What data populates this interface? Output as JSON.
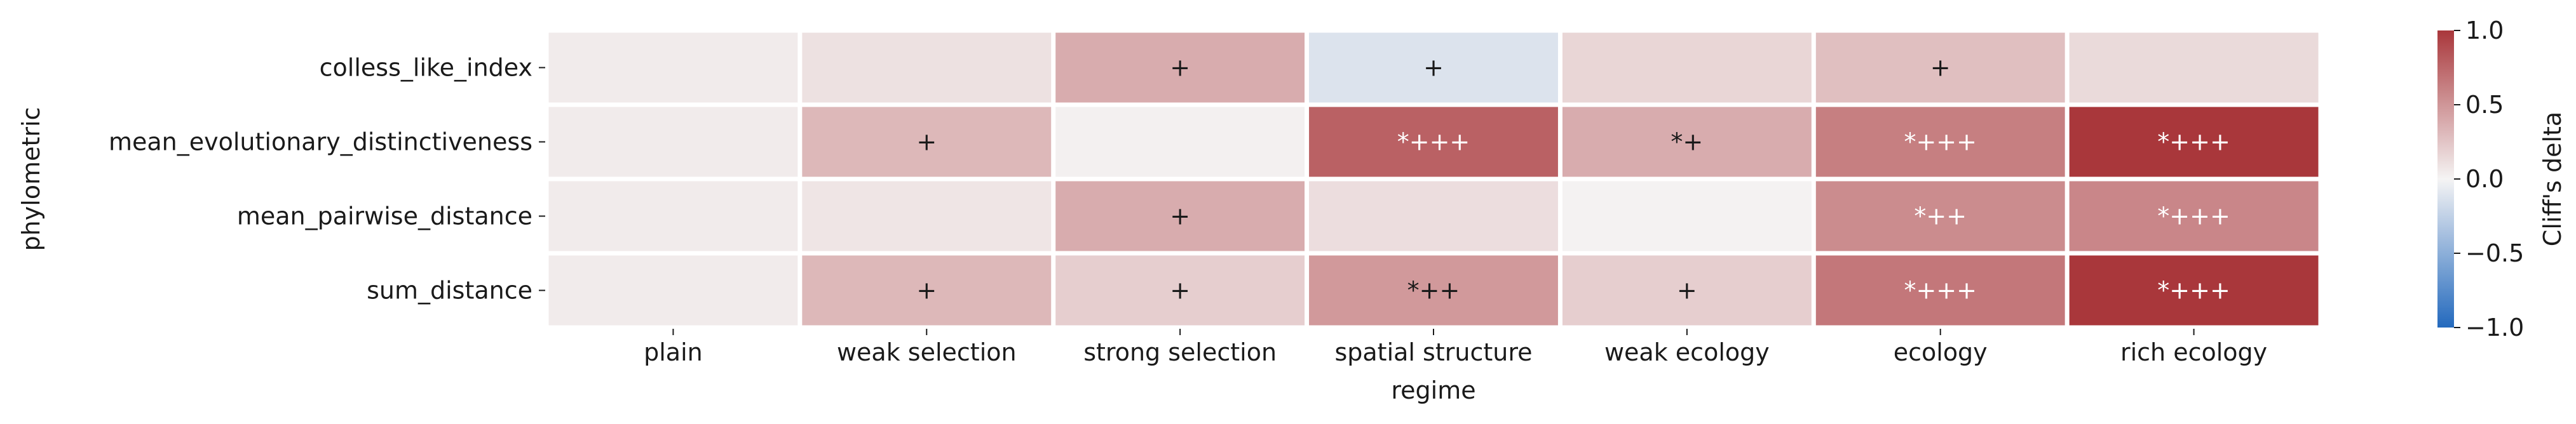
{
  "chart_data": {
    "type": "heatmap",
    "xlabel": "regime",
    "ylabel": "phylometric",
    "x_categories": [
      "plain",
      "weak selection",
      "strong selection",
      "spatial structure",
      "weak ecology",
      "ecology",
      "rich ecology"
    ],
    "y_categories": [
      "colless_like_index",
      "mean_evolutionary_distinctiveness",
      "mean_pairwise_distance",
      "sum_distance"
    ],
    "values": [
      [
        0.05,
        0.1,
        0.38,
        -0.12,
        0.16,
        0.28,
        0.14
      ],
      [
        0.05,
        0.32,
        0.02,
        0.78,
        0.38,
        0.62,
        1.0
      ],
      [
        0.05,
        0.08,
        0.38,
        0.12,
        0.01,
        0.55,
        0.58
      ],
      [
        0.05,
        0.32,
        0.2,
        0.48,
        0.2,
        0.66,
        1.0
      ]
    ],
    "annotations": [
      [
        "",
        "",
        "+",
        "+",
        "",
        "+",
        ""
      ],
      [
        "",
        "+",
        "",
        "*+++",
        "*+",
        "*+++",
        "*+++"
      ],
      [
        "",
        "",
        "+",
        "",
        "",
        "*++",
        "*+++"
      ],
      [
        "",
        "+",
        "+",
        "*++",
        "+",
        "*+++",
        "*+++"
      ]
    ],
    "colorbar": {
      "label": "Cliff's delta",
      "range": [
        -1.0,
        1.0
      ],
      "ticks": [
        -1.0,
        -0.5,
        0.0,
        0.5,
        1.0
      ],
      "tick_labels": [
        "−1.0",
        "−0.5",
        "0.0",
        "0.5",
        "1.0"
      ],
      "colormap": "vlag",
      "low_color": "#2369bd",
      "mid_color": "#f5f4f4",
      "high_color": "#a9373b"
    },
    "grid": false,
    "cell_border_color": "#ffffff"
  }
}
